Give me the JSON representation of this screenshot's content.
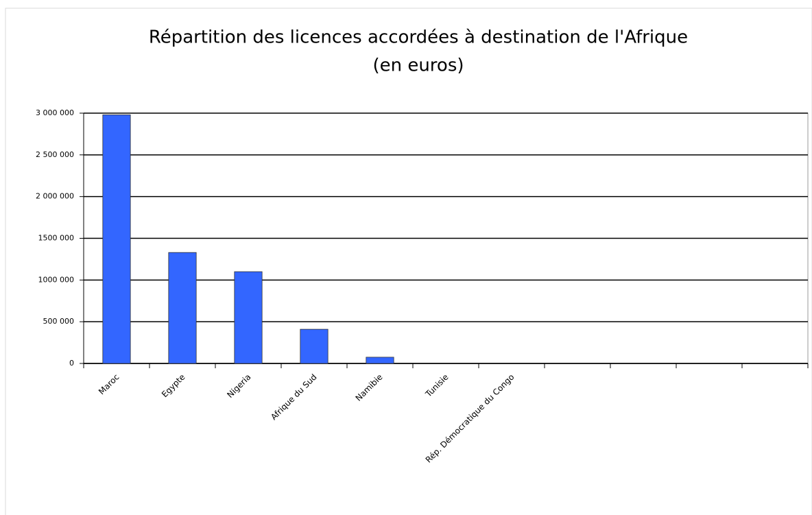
{
  "chart_data": {
    "type": "bar",
    "title": "Répartition des licences accordées à destination de l'Afrique",
    "subtitle": "(en euros)",
    "categories": [
      "Maroc",
      "Egypte",
      "Nigeria",
      "Afrique du Sud",
      "Namibie",
      "Tunisie",
      "Rép. Démocratique du Congo",
      null,
      null,
      null,
      null
    ],
    "values": [
      2980000,
      1330000,
      1100000,
      410000,
      75000,
      0,
      0,
      null,
      null,
      null,
      null
    ],
    "color": "#3366ff",
    "ylim": [
      0,
      3000000
    ],
    "yticks": [
      0,
      {
        "value": 500000,
        "label": "500 000"
      },
      {
        "value": 1000000,
        "label": "1000 000"
      },
      {
        "value": 1500000,
        "label": "1500 000"
      },
      {
        "value": 2000000,
        "label": "2 000 000"
      },
      {
        "value": 2500000,
        "label": "2 500 000"
      },
      {
        "value": 3000000,
        "label": "3 000 000"
      }
    ],
    "grid": true
  }
}
